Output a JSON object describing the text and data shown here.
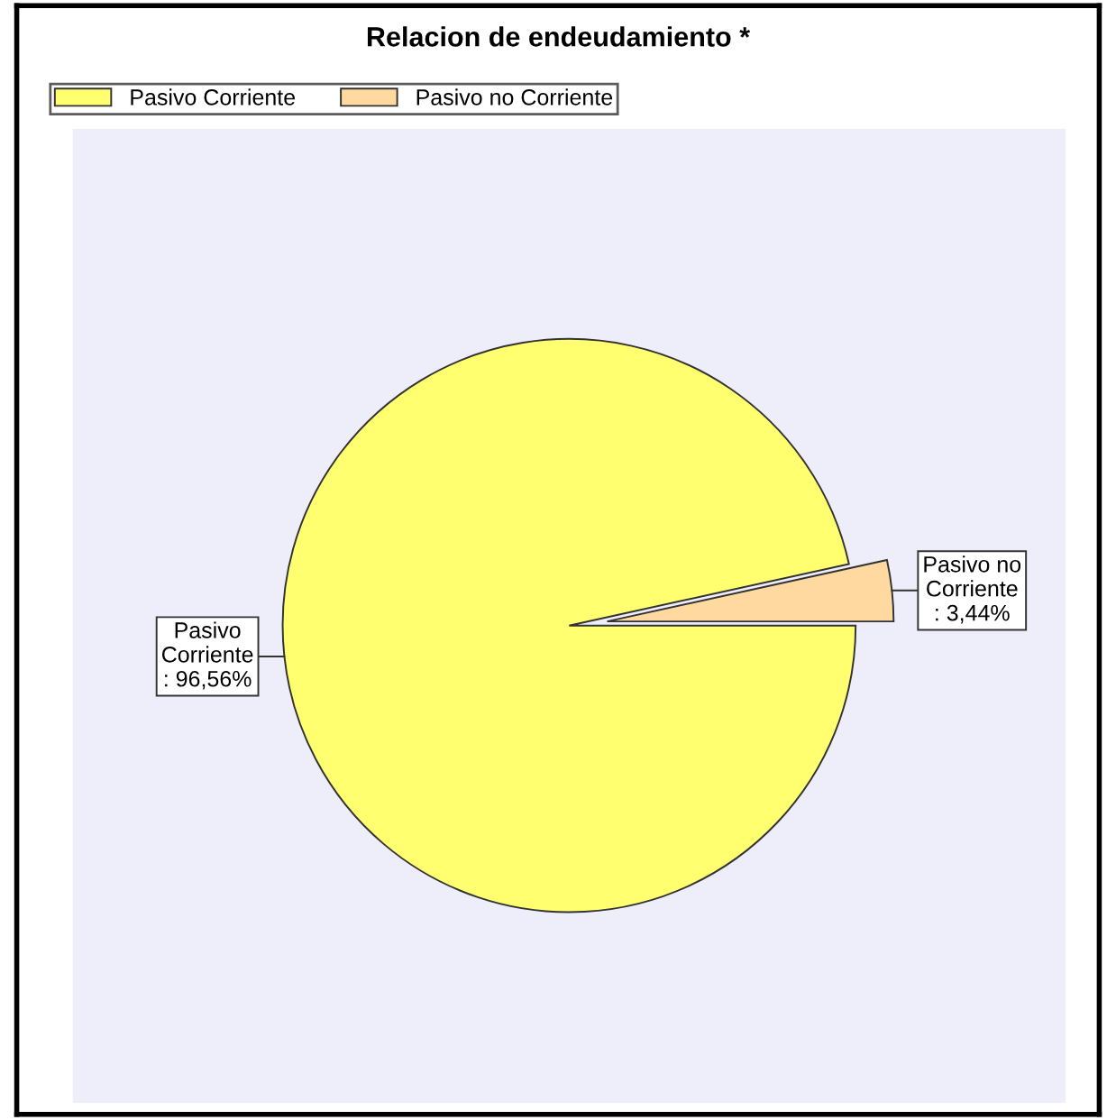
{
  "chart_data": {
    "type": "pie",
    "title": "Relacion de endeudamiento *",
    "categories": [
      "Pasivo Corriente",
      "Pasivo no Corriente"
    ],
    "values": [
      96.56,
      3.44
    ],
    "colors": [
      "#ffff70",
      "#ffd9a0"
    ],
    "value_labels": [
      ": 96,56%",
      ": 3,44%"
    ],
    "legend": "top left"
  }
}
